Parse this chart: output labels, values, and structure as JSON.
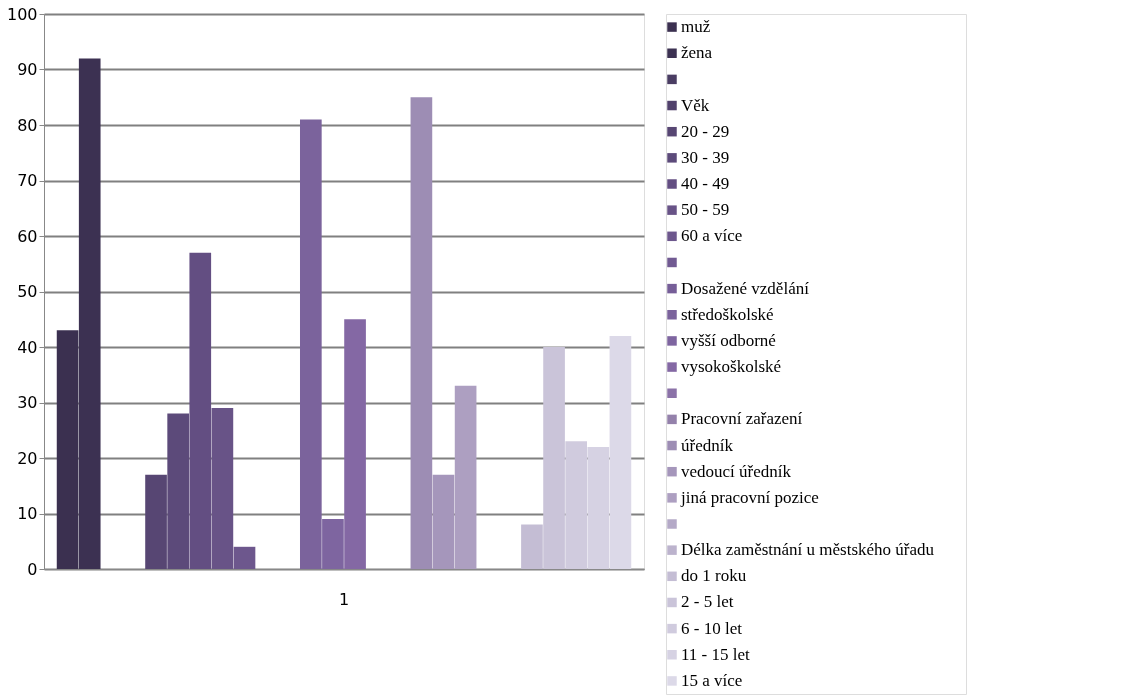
{
  "chart_data": {
    "type": "bar",
    "categories": [
      "1"
    ],
    "ylim": [
      0,
      100
    ],
    "yticks": [
      0,
      10,
      20,
      30,
      40,
      50,
      60,
      70,
      80,
      90,
      100
    ],
    "grid": "y",
    "legend": "right",
    "series": [
      {
        "name": "muž",
        "color": "#3b3050",
        "values": [
          43
        ]
      },
      {
        "name": "žena",
        "color": "#3c3152",
        "values": [
          92
        ]
      },
      {
        "name": null,
        "color": "#4a3d63",
        "values": [
          null
        ]
      },
      {
        "name": "Věk",
        "color": "#51416c",
        "values": [
          null
        ]
      },
      {
        "name": "20 - 29",
        "color": "#574673",
        "values": [
          17
        ]
      },
      {
        "name": "30 - 39",
        "color": "#5c4a7a",
        "values": [
          28
        ]
      },
      {
        "name": "40 - 49",
        "color": "#634e82",
        "values": [
          57
        ]
      },
      {
        "name": "50 - 59",
        "color": "#685387",
        "values": [
          29
        ]
      },
      {
        "name": "60 a více",
        "color": "#6d578d",
        "values": [
          4
        ]
      },
      {
        "name": null,
        "color": "#715a92",
        "values": [
          null
        ]
      },
      {
        "name": "Dosažené vzdělání",
        "color": "#765e98",
        "values": [
          null
        ]
      },
      {
        "name": "středoškolské",
        "color": "#7b639c",
        "values": [
          81
        ]
      },
      {
        "name": "vyšší odborné",
        "color": "#7e65a0",
        "values": [
          9
        ]
      },
      {
        "name": "vysokoškolské",
        "color": "#8468a4",
        "values": [
          45
        ]
      },
      {
        "name": null,
        "color": "#8b72a8",
        "values": [
          null
        ]
      },
      {
        "name": "Pracovní zařazení",
        "color": "#9481ab",
        "values": [
          null
        ]
      },
      {
        "name": "úředník",
        "color": "#9d8db4",
        "values": [
          85
        ]
      },
      {
        "name": "vedoucí úředník",
        "color": "#a596bb",
        "values": [
          17
        ]
      },
      {
        "name": "jiná pracovní pozice",
        "color": "#ad9fc1",
        "values": [
          33
        ]
      },
      {
        "name": null,
        "color": "#b4a9c7",
        "values": [
          null
        ]
      },
      {
        "name": "Délka zaměstnání u městského úřadu",
        "color": "#bcb3cd",
        "values": [
          null
        ]
      },
      {
        "name": "do 1 roku",
        "color": "#c4bdd4",
        "values": [
          8
        ]
      },
      {
        "name": "2 - 5 let",
        "color": "#cac4d9",
        "values": [
          40
        ]
      },
      {
        "name": "6 - 10 let",
        "color": "#d0cbde",
        "values": [
          23
        ]
      },
      {
        "name": "11 - 15 let",
        "color": "#d6d2e3",
        "values": [
          22
        ]
      },
      {
        "name": "15 a více",
        "color": "#dcd9e8",
        "values": [
          42
        ]
      }
    ]
  }
}
